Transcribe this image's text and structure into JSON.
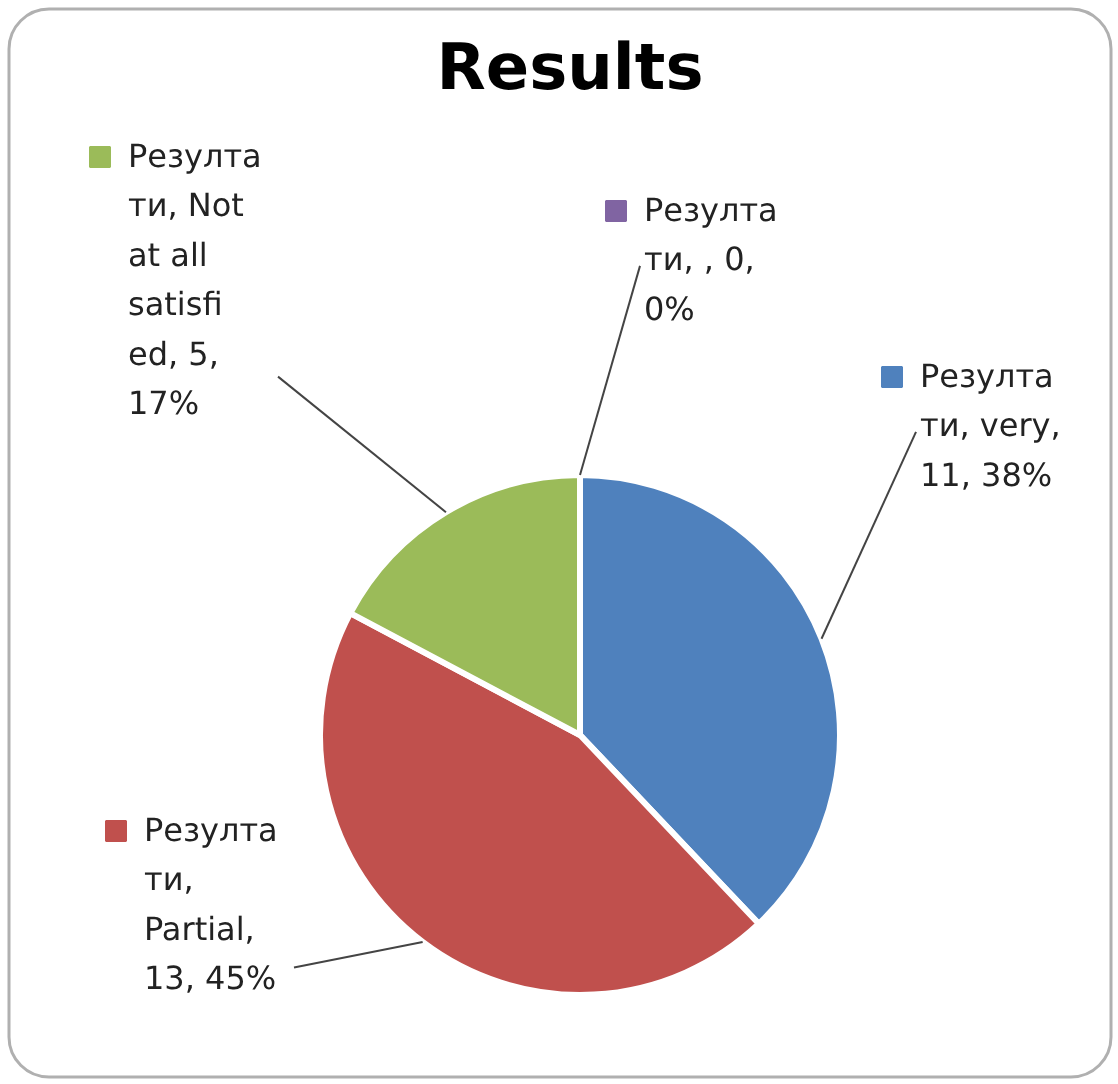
{
  "chart_data": {
    "type": "pie",
    "title": "Results",
    "categories": [
      "Резултати, very, 11, 38%",
      "Резултати, Partial, 13, 45%",
      "Резултати, Not at all satisfied, 5, 17%",
      "Резултати, , 0, 0%"
    ],
    "values": [
      11,
      13,
      5,
      0
    ],
    "colors": [
      "#4f81bd",
      "#c0504d",
      "#9bbb59",
      "#8064a2"
    ],
    "legend": "top left"
  }
}
